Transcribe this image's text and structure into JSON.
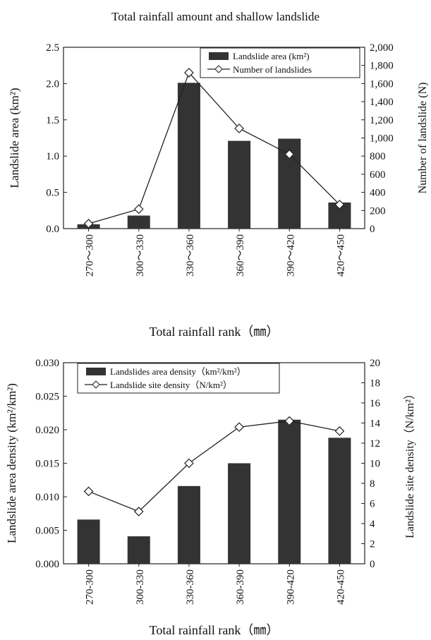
{
  "title": "Total rainfall amount and shallow landslide",
  "chart_data": [
    {
      "type": "bar",
      "categories": [
        "270～300",
        "300～330",
        "330～360",
        "360～390",
        "390～420",
        "420～450"
      ],
      "series": [
        {
          "name": "Landslide area (km²)",
          "type": "bar",
          "axis": "left",
          "values": [
            0.06,
            0.18,
            2.01,
            1.21,
            1.24,
            0.36
          ]
        },
        {
          "name": "Number of landslides",
          "type": "line",
          "axis": "right",
          "values": [
            55,
            215,
            1720,
            1105,
            820,
            265
          ]
        }
      ],
      "xlabel": "Total rainfall rank（㎜）",
      "ylabel": "Landslide area (km²)",
      "y2label": "Number of landslide (N)",
      "ylim": [
        0,
        2.5
      ],
      "y2lim": [
        0,
        2000
      ],
      "yticks": [
        "0.0",
        "0.5",
        "1.0",
        "1.5",
        "2.0",
        "2.5"
      ],
      "y2ticks": [
        "0",
        "200",
        "400",
        "600",
        "800",
        "1,000",
        "1,200",
        "1,400",
        "1,600",
        "1,800",
        "2,000"
      ],
      "legend": "top-right",
      "grid": false
    },
    {
      "type": "bar",
      "categories": [
        "270-300",
        "300-330",
        "330-360",
        "360-390",
        "390-420",
        "420-450"
      ],
      "series": [
        {
          "name": "Landslides area density（km²/km²）",
          "type": "bar",
          "axis": "left",
          "values": [
            0.0066,
            0.0041,
            0.0116,
            0.015,
            0.0215,
            0.0188
          ]
        },
        {
          "name": "Landslide site density（N/km²）",
          "type": "line",
          "axis": "right",
          "values": [
            7.2,
            5.2,
            10.0,
            13.6,
            14.2,
            13.2
          ]
        }
      ],
      "xlabel": "Total rainfall rank（㎜）",
      "ylabel": "Landslide area density (km²/km²)",
      "y2label": "Landslide site density（N/km²）",
      "ylim": [
        0,
        0.03
      ],
      "y2lim": [
        0,
        20
      ],
      "yticks": [
        "0.000",
        "0.005",
        "0.010",
        "0.015",
        "0.020",
        "0.025",
        "0.030"
      ],
      "y2ticks": [
        "0",
        "2",
        "4",
        "6",
        "8",
        "10",
        "12",
        "14",
        "16",
        "18",
        "20"
      ],
      "legend": "top-left",
      "grid": false
    }
  ]
}
